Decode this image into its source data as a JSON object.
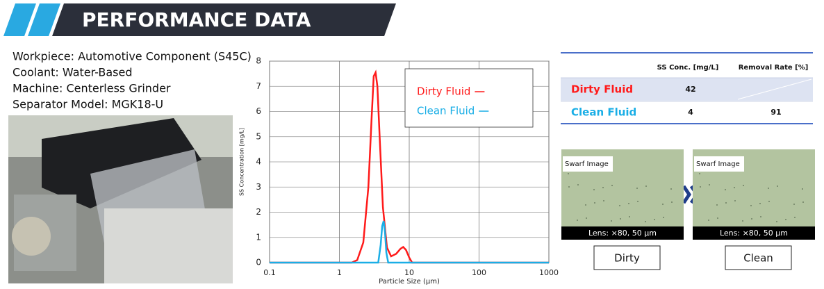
{
  "header": {
    "title": "PERFORMANCE DATA"
  },
  "specs": [
    "Workpiece: Automotive Component (S45C)",
    "Coolant: Water-Based",
    "Machine: Centerless Grinder",
    "Separator Model: MGK18-U"
  ],
  "chart_data": {
    "type": "line",
    "x_label": "Particle Size (µm)",
    "y_label": "SS Concentration [mg/L]",
    "xlim": [
      0.1,
      1000
    ],
    "xticks": [
      0.1,
      1,
      10,
      100,
      1000
    ],
    "xscale": "log",
    "ylim": [
      0,
      8
    ],
    "yticks": [
      0,
      1,
      2,
      3,
      4,
      5,
      6,
      7,
      8
    ],
    "grid": true,
    "legend": "upper right",
    "series": [
      {
        "name": "Dirty Fluid",
        "color": "#ff1a1a",
        "x": [
          0.1,
          1.5,
          1.8,
          2.2,
          2.6,
          2.9,
          3.1,
          3.3,
          3.5,
          3.8,
          4.2,
          4.8,
          5.5,
          6.5,
          7.5,
          8.2,
          9,
          10,
          11,
          1000
        ],
        "values": [
          0,
          0,
          0.1,
          0.8,
          3.0,
          5.8,
          7.4,
          7.55,
          7.0,
          4.8,
          2.2,
          0.6,
          0.25,
          0.35,
          0.55,
          0.62,
          0.5,
          0.2,
          0,
          0
        ]
      },
      {
        "name": "Clean Fluid",
        "color": "#1aaee6",
        "x": [
          0.1,
          3.6,
          3.9,
          4.1,
          4.3,
          4.5,
          4.7,
          5.0,
          1000
        ],
        "values": [
          0,
          0,
          0.7,
          1.45,
          1.65,
          1.2,
          0.4,
          0,
          0
        ]
      }
    ]
  },
  "table": {
    "header": [
      "SS Conc. [mg/L]",
      "Removal Rate [%]"
    ],
    "rows": [
      [
        "Dirty Fluid",
        42,
        null
      ],
      [
        "Clean Fluid",
        4,
        91
      ]
    ]
  },
  "swarf": [
    {
      "label": "Swarf Image",
      "caption": "Lens: ×80, 50 µm",
      "button": "Dirty"
    },
    {
      "label": "Swarf Image",
      "caption": "Lens: ×80, 50 µm",
      "button": "Clean"
    }
  ]
}
